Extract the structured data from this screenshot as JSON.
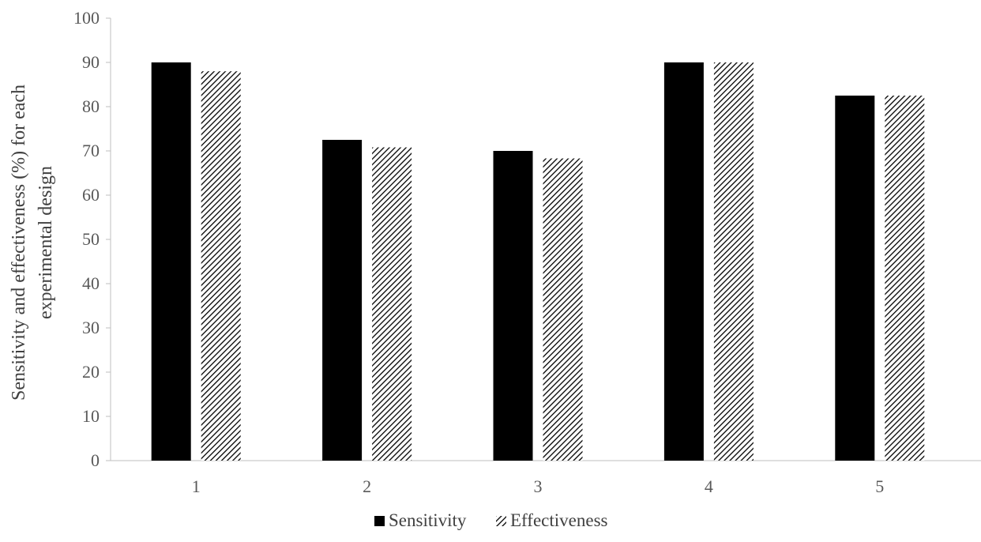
{
  "chart_data": {
    "type": "bar",
    "categories": [
      "1",
      "2",
      "3",
      "4",
      "5"
    ],
    "series": [
      {
        "name": "Sensitivity",
        "values": [
          90,
          72.5,
          70,
          90,
          82.5
        ]
      },
      {
        "name": "Effectiveness",
        "values": [
          88,
          70.8,
          68.3,
          90,
          82.5
        ]
      }
    ],
    "ylabel_lines": [
      "Sensitivity  and effectiveness (%) for each",
      "experimental design"
    ],
    "ylim": [
      0,
      100
    ],
    "yticks": [
      0,
      10,
      20,
      30,
      40,
      50,
      60,
      70,
      80,
      90,
      100
    ],
    "grid": false,
    "legend_position": "bottom-center",
    "series_styles": [
      "solid-black",
      "diagonal-hatch"
    ],
    "colors": {
      "bar": "#000000",
      "axis": "#bfbfbf",
      "text": "#595959"
    }
  }
}
